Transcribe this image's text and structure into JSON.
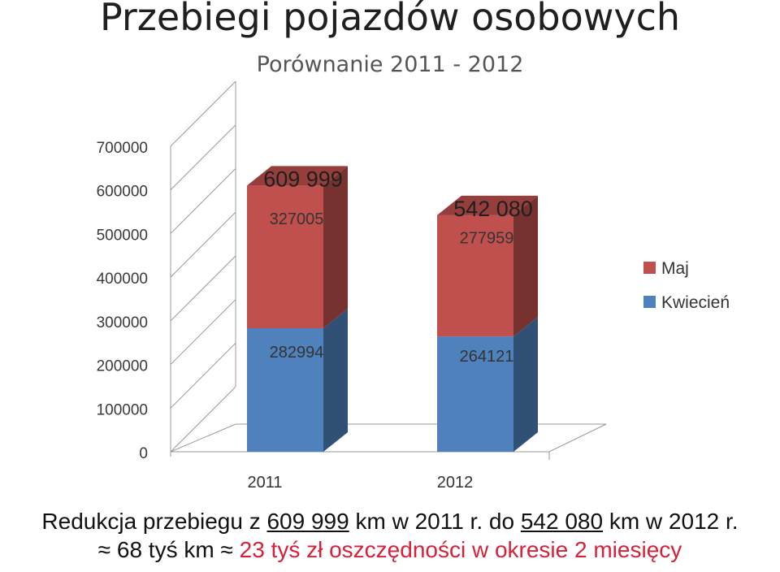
{
  "title": "Przebiegi pojazdów osobowych",
  "subtitle": "Porównanie 2011 - 2012",
  "chart_data": {
    "type": "bar",
    "stacked": true,
    "three_d": true,
    "categories": [
      "2011",
      "2012"
    ],
    "series": [
      {
        "name": "Kwiecień",
        "values": [
          282994,
          264121
        ],
        "color": "#4f81bd",
        "labels": [
          "282994",
          "264121"
        ]
      },
      {
        "name": "Maj",
        "values": [
          327005,
          277959
        ],
        "color": "#c0504d",
        "labels": [
          "327005",
          "277959"
        ]
      }
    ],
    "totals": [
      609999,
      542080
    ],
    "total_labels": [
      "609 999",
      "542 080"
    ],
    "ylim": [
      0,
      700000
    ],
    "yticks": [
      "0",
      "100000",
      "200000",
      "300000",
      "400000",
      "500000",
      "600000",
      "700000"
    ],
    "grid": true,
    "legend_position": "right",
    "legend": [
      "Maj",
      "Kwiecień"
    ]
  },
  "notes": {
    "line1": {
      "a": "Redukcja przebiegu z ",
      "b": "609 999",
      "c": " km w 2011 r. do ",
      "d": "542 080",
      "e": " km w 2012 r."
    },
    "line2": {
      "sym1": "≈",
      "a": " 68 tyś km ",
      "sym2": "≈",
      "b": " 23 tyś zł oszczędności w okresie 2 miesięcy"
    }
  }
}
